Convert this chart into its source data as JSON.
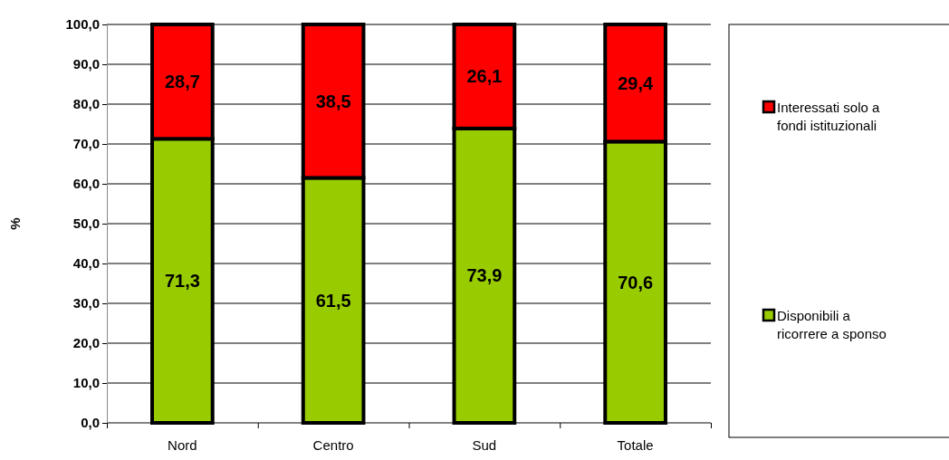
{
  "chart_data": {
    "type": "bar",
    "stacked": true,
    "ylabel": "%",
    "categories": [
      "Nord",
      "Centro",
      "Sud",
      "Totale"
    ],
    "series": [
      {
        "name": "Disponibili a ricorrere a sponso",
        "color": "#99cc00",
        "values": [
          71.3,
          61.5,
          73.9,
          70.6
        ],
        "value_labels": [
          "71,3",
          "61,5",
          "73,9",
          "70,6"
        ]
      },
      {
        "name": "Interessati solo a fondi istituzionali",
        "color": "#ff0000",
        "values": [
          28.7,
          38.5,
          26.1,
          29.4
        ],
        "value_labels": [
          "28,7",
          "38,5",
          "26,1",
          "29,4"
        ]
      }
    ],
    "ylim": [
      0,
      100
    ],
    "yticks": [
      {
        "value": 0,
        "label": "0,0"
      },
      {
        "value": 10,
        "label": "10,0"
      },
      {
        "value": 20,
        "label": "20,0"
      },
      {
        "value": 30,
        "label": "30,0"
      },
      {
        "value": 40,
        "label": "40,0"
      },
      {
        "value": 50,
        "label": "50,0"
      },
      {
        "value": 60,
        "label": "60,0"
      },
      {
        "value": 70,
        "label": "70,0"
      },
      {
        "value": 80,
        "label": "80,0"
      },
      {
        "value": 90,
        "label": "90,0"
      },
      {
        "value": 100,
        "label": "100,0"
      }
    ],
    "grid": "y",
    "legend": "right"
  }
}
